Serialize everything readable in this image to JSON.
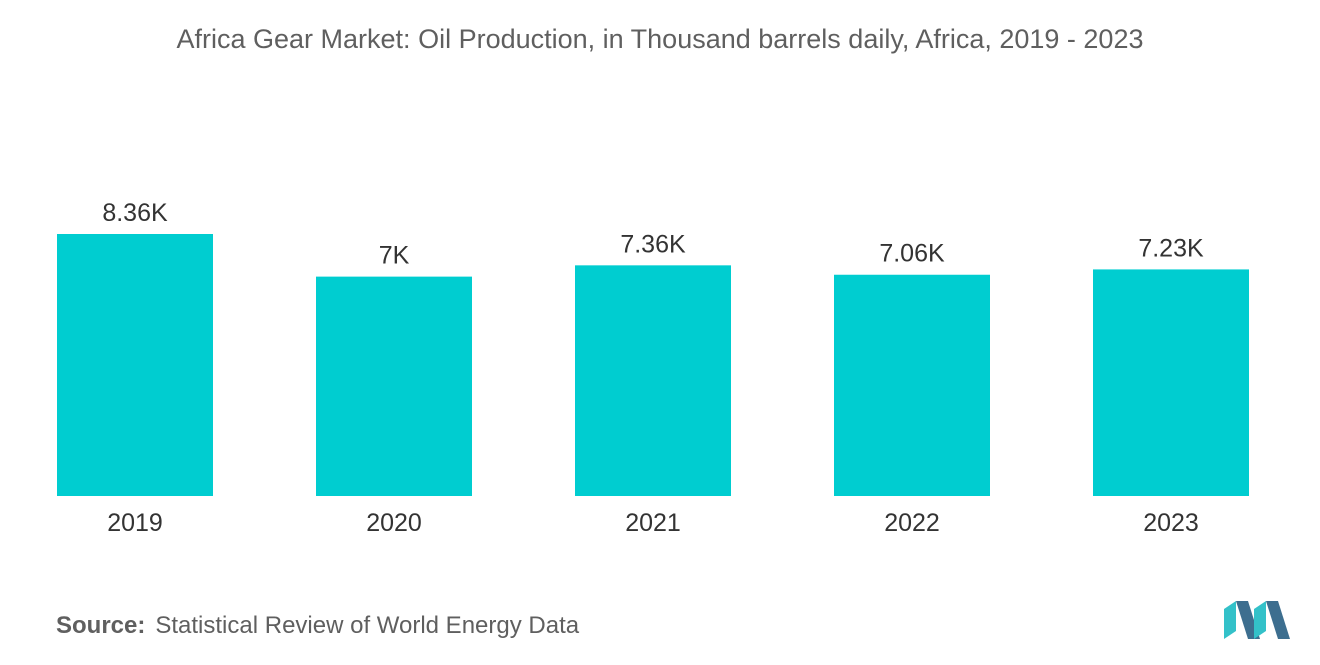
{
  "title": "Africa Gear Market: Oil Production, in Thousand barrels daily, Africa, 2019 - 2023",
  "source": {
    "label": "Source:",
    "text": "Statistical Review of World Energy Data"
  },
  "colors": {
    "bar": "#00CDD0",
    "logo_dark": "#3D6E8F",
    "logo_light": "#33C1C9"
  },
  "logo_icon": "mordor-intelligence-logo",
  "chart_data": {
    "type": "bar",
    "title": "Africa Gear Market: Oil Production, in Thousand barrels daily, Africa, 2019 - 2023",
    "categories": [
      "2019",
      "2020",
      "2021",
      "2022",
      "2023"
    ],
    "values": [
      8.36,
      7.0,
      7.36,
      7.06,
      7.23
    ],
    "value_labels": [
      "8.36K",
      "7K",
      "7.36K",
      "7.06K",
      "7.23K"
    ],
    "xlabel": "",
    "ylabel": "",
    "ylim": [
      0,
      8.36
    ],
    "grid": false,
    "legend": "none"
  }
}
